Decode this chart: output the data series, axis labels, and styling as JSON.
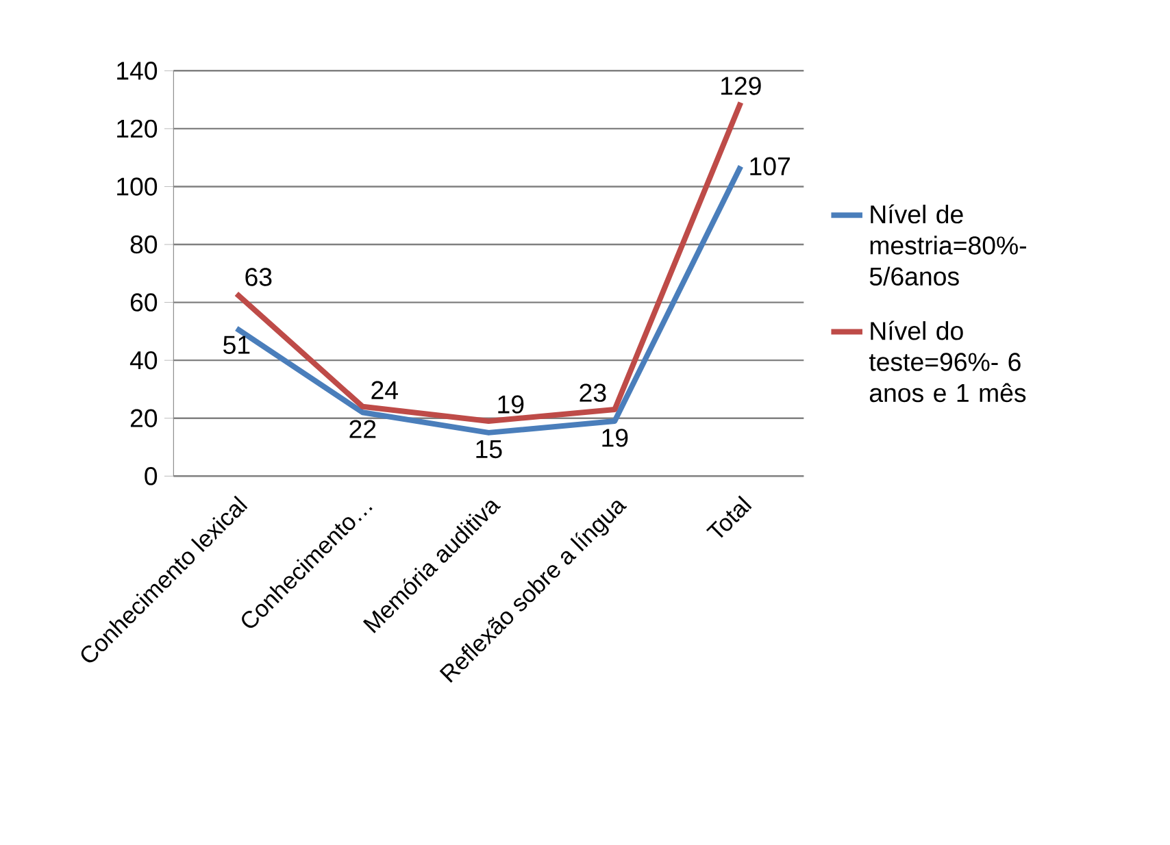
{
  "chart_data": {
    "type": "line",
    "categories": [
      "Conhecimento lexical",
      "Conhecimento…",
      "Memória auditiva",
      "Reflexão sobre a língua",
      "Total"
    ],
    "series": [
      {
        "name": "Nível de mestria=80%- 5/6anos",
        "color": "#4a7ebb",
        "values": [
          51,
          22,
          15,
          19,
          107
        ]
      },
      {
        "name": "Nível do teste=96%- 6 anos e 1 mês",
        "color": "#be4b48",
        "values": [
          63,
          24,
          19,
          23,
          129
        ]
      }
    ],
    "ylim": [
      0,
      140
    ],
    "yticks": [
      0,
      20,
      40,
      60,
      80,
      100,
      120,
      140
    ],
    "grid": "y",
    "legend": "right",
    "data_labels": true,
    "marker": "none",
    "line_style": "solid"
  }
}
